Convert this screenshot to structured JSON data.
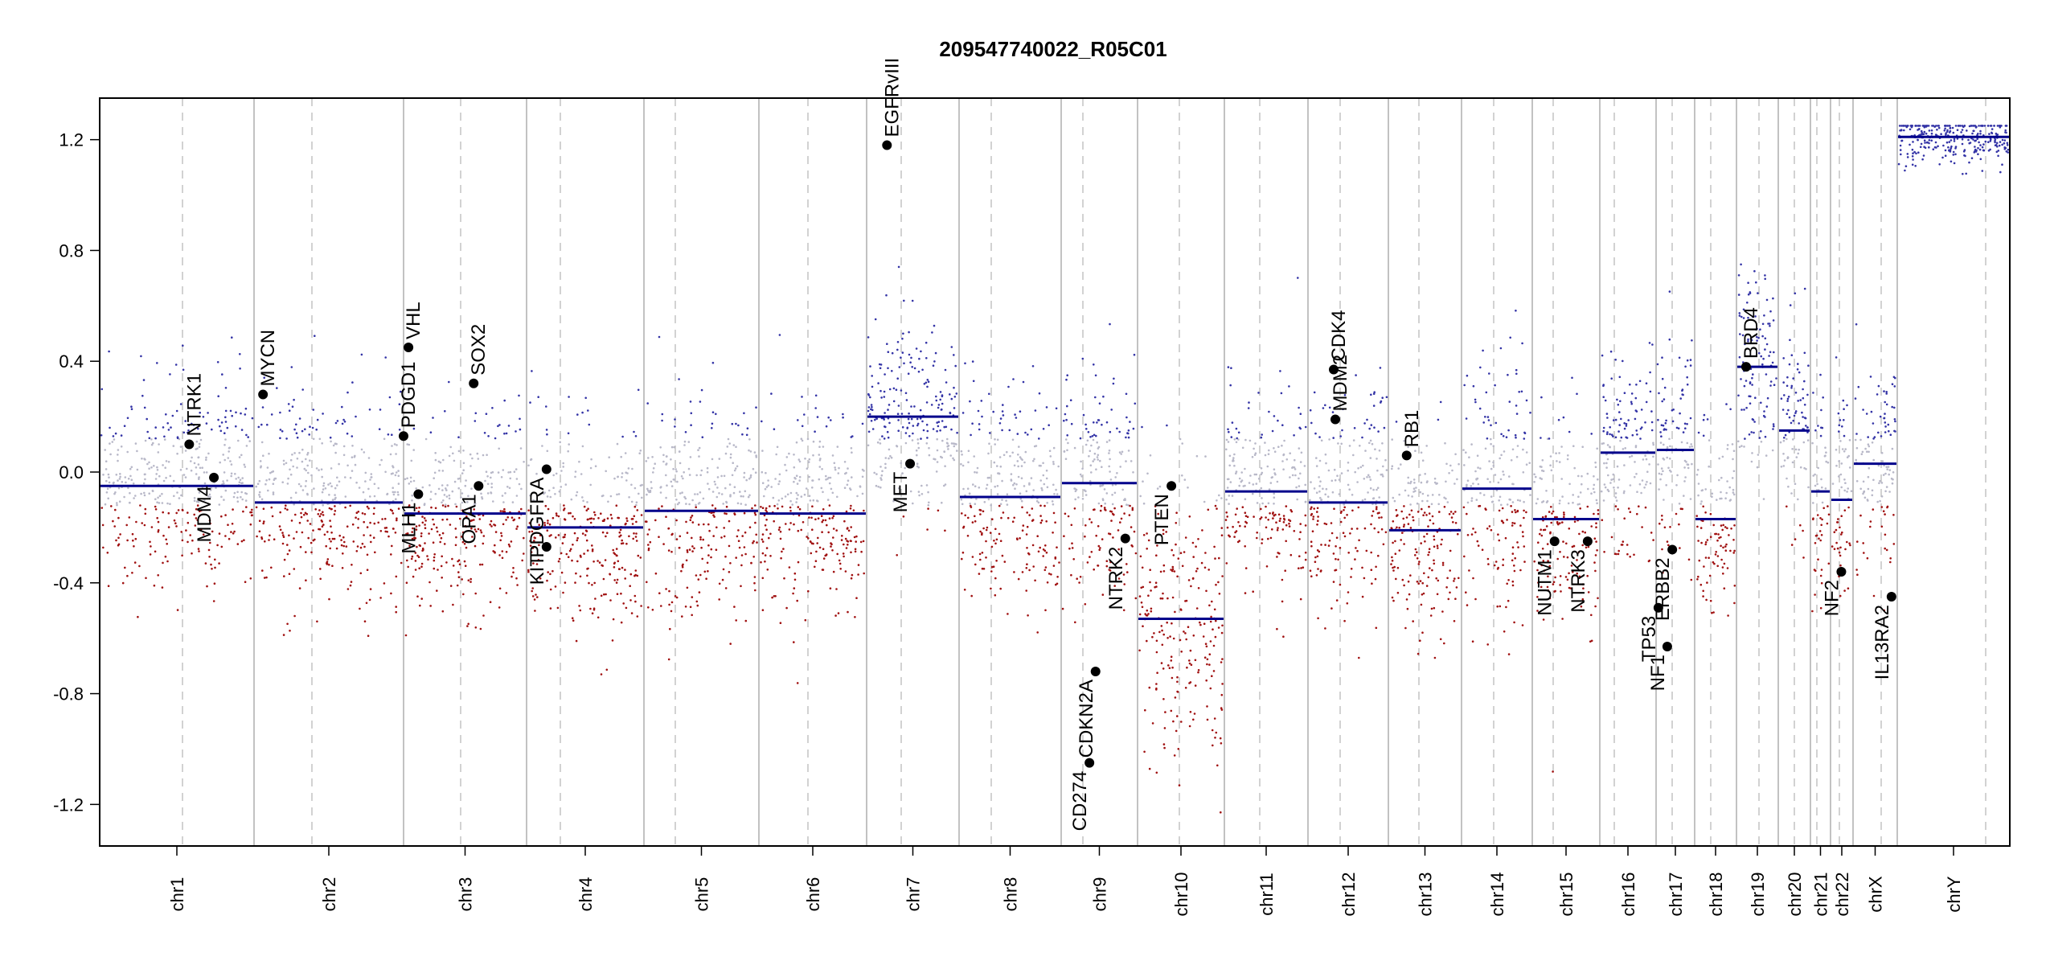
{
  "chart_data": {
    "type": "scatter",
    "title": "209547740022_R05C01",
    "xlabel": "",
    "ylabel": "",
    "ylim": [
      -1.35,
      1.35
    ],
    "yticks": [
      -1.2,
      -0.8,
      -0.4,
      0.0,
      0.4,
      0.8,
      1.2
    ],
    "ytick_labels": [
      "-1.2",
      "-0.8",
      "-0.4",
      "0.0",
      "0.4",
      "0.8",
      "1.2"
    ],
    "grid": "chromosome boundaries (solid) and centromeres (dashed)",
    "point_colors": {
      "gain": "#3333a6",
      "neutral": "#b8b8c8",
      "loss": "#a01010"
    },
    "segment_color": "#00008b",
    "gene_marker_color": "#000000",
    "chromosomes": [
      {
        "name": "chr1",
        "seg": -0.05,
        "noise": 0.18
      },
      {
        "name": "chr2",
        "seg": -0.11,
        "noise": 0.18
      },
      {
        "name": "chr3",
        "seg": -0.15,
        "noise": 0.17
      },
      {
        "name": "chr4",
        "seg": -0.2,
        "noise": 0.19
      },
      {
        "name": "chr5",
        "seg": -0.14,
        "noise": 0.19
      },
      {
        "name": "chr6",
        "seg": -0.15,
        "noise": 0.18
      },
      {
        "name": "chr7",
        "seg": 0.2,
        "noise": 0.17
      },
      {
        "name": "chr8",
        "seg": -0.09,
        "noise": 0.18
      },
      {
        "name": "chr9",
        "seg": -0.04,
        "noise": 0.2
      },
      {
        "name": "chr10",
        "seg": -0.53,
        "noise": 0.25
      },
      {
        "name": "chr11",
        "seg": -0.07,
        "noise": 0.18
      },
      {
        "name": "chr12",
        "seg": -0.11,
        "noise": 0.2
      },
      {
        "name": "chr13",
        "seg": -0.21,
        "noise": 0.18
      },
      {
        "name": "chr14",
        "seg": -0.06,
        "noise": 0.22
      },
      {
        "name": "chr15",
        "seg": -0.17,
        "noise": 0.19
      },
      {
        "name": "chr16",
        "seg": 0.07,
        "noise": 0.18
      },
      {
        "name": "chr17",
        "seg": 0.08,
        "noise": 0.2
      },
      {
        "name": "chr18",
        "seg": -0.17,
        "noise": 0.18
      },
      {
        "name": "chr19",
        "seg": 0.38,
        "noise": 0.18
      },
      {
        "name": "chr20",
        "seg": 0.15,
        "noise": 0.18
      },
      {
        "name": "chr21",
        "seg": -0.07,
        "noise": 0.2
      },
      {
        "name": "chr22",
        "seg": -0.1,
        "noise": 0.2
      },
      {
        "name": "chrX",
        "seg": 0.03,
        "noise": 0.2
      },
      {
        "name": "chrY",
        "seg": 1.21,
        "noise": 0.05
      }
    ],
    "genes": [
      {
        "name": "NTRK1",
        "chrom": "chr1",
        "value": 0.1
      },
      {
        "name": "MDM4",
        "chrom": "chr1",
        "value": -0.02
      },
      {
        "name": "MYCN",
        "chrom": "chr2",
        "value": 0.28
      },
      {
        "name": "PDGD1",
        "chrom": "chr3",
        "value": 0.13
      },
      {
        "name": "VHL",
        "chrom": "chr3",
        "value": 0.45
      },
      {
        "name": "MLH1",
        "chrom": "chr3",
        "value": -0.08
      },
      {
        "name": "SOX2",
        "chrom": "chr3",
        "value": 0.32
      },
      {
        "name": "OPA1",
        "chrom": "chr3",
        "value": -0.05
      },
      {
        "name": "PDGFRA",
        "chrom": "chr4",
        "value": 0.01
      },
      {
        "name": "KIT",
        "chrom": "chr4",
        "value": -0.27
      },
      {
        "name": "EGFRvIII",
        "chrom": "chr7",
        "value": 1.18
      },
      {
        "name": "MET",
        "chrom": "chr7",
        "value": 0.03
      },
      {
        "name": "CDKN2A",
        "chrom": "chr9",
        "value": -0.72
      },
      {
        "name": "CD274",
        "chrom": "chr9",
        "value": -1.05
      },
      {
        "name": "NTRK2",
        "chrom": "chr9",
        "value": -0.24
      },
      {
        "name": "PTEN",
        "chrom": "chr10",
        "value": -0.05
      },
      {
        "name": "CDK4",
        "chrom": "chr12",
        "value": 0.37
      },
      {
        "name": "MDM2",
        "chrom": "chr12",
        "value": 0.19
      },
      {
        "name": "RB1",
        "chrom": "chr13",
        "value": 0.06
      },
      {
        "name": "NUTM1",
        "chrom": "chr15",
        "value": -0.25
      },
      {
        "name": "NTRK3",
        "chrom": "chr15",
        "value": -0.25
      },
      {
        "name": "TP53",
        "chrom": "chr17",
        "value": -0.49
      },
      {
        "name": "NF1",
        "chrom": "chr17",
        "value": -0.63
      },
      {
        "name": "ERBB2",
        "chrom": "chr17",
        "value": -0.28
      },
      {
        "name": "BRD4",
        "chrom": "chr19",
        "value": 0.38
      },
      {
        "name": "NF2",
        "chrom": "chr22",
        "value": -0.36
      },
      {
        "name": "IL13RA2",
        "chrom": "chrX",
        "value": -0.45
      }
    ]
  }
}
